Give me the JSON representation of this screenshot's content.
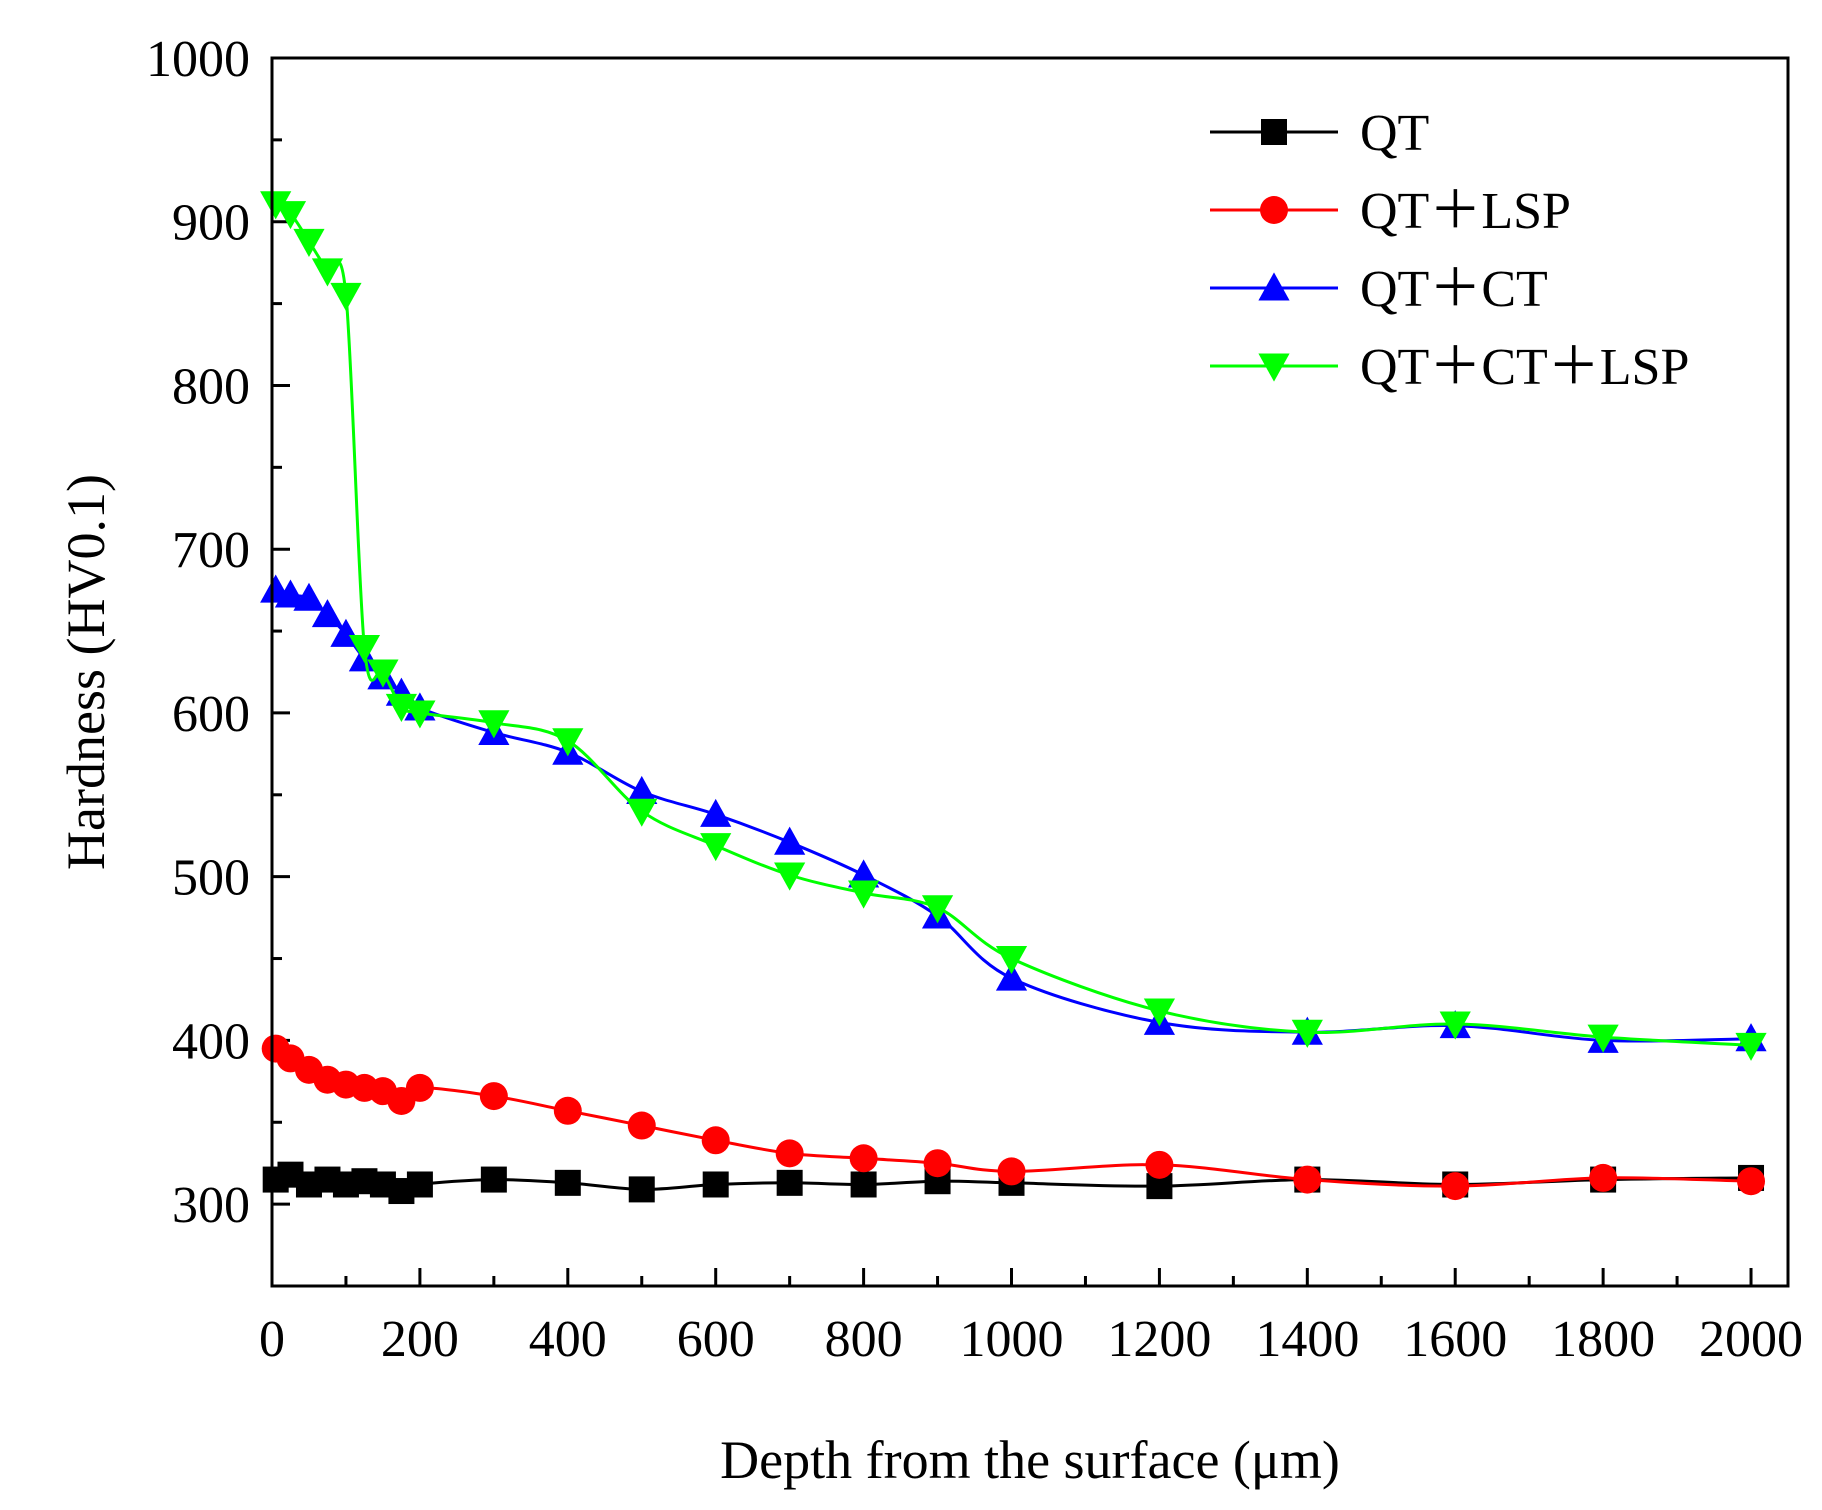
{
  "chart_data": {
    "type": "line",
    "title": "",
    "xlabel": "Depth from the surface (μm)",
    "ylabel": "Hardness (HV0.1)",
    "xlim": [
      0,
      2050
    ],
    "ylim": [
      250,
      1000
    ],
    "xticks": [
      0,
      200,
      400,
      600,
      800,
      1000,
      1200,
      1400,
      1600,
      1800,
      2000
    ],
    "yticks": [
      300,
      400,
      500,
      600,
      700,
      800,
      900,
      1000
    ],
    "xtick_labels": [
      "0",
      "200",
      "400",
      "600",
      "800",
      "1000",
      "1200",
      "1400",
      "1600",
      "1800",
      "2000"
    ],
    "ytick_labels": [
      "300",
      "400",
      "500",
      "600",
      "700",
      "800",
      "900",
      "1000"
    ],
    "grid": false,
    "legend_position": "top-right",
    "series": [
      {
        "name": "QT",
        "color": "#000000",
        "marker": "square",
        "x": [
          5,
          25,
          50,
          75,
          100,
          125,
          150,
          175,
          200,
          300,
          400,
          500,
          600,
          700,
          800,
          900,
          1000,
          1200,
          1400,
          1600,
          1800,
          2000
        ],
        "y": [
          315,
          318,
          312,
          315,
          312,
          314,
          312,
          308,
          312,
          315,
          313,
          309,
          312,
          313,
          312,
          314,
          313,
          311,
          315,
          312,
          315,
          316
        ]
      },
      {
        "name": "QT＋LSP",
        "color": "#ff0000",
        "marker": "circle",
        "x": [
          5,
          25,
          50,
          75,
          100,
          125,
          150,
          175,
          200,
          300,
          400,
          500,
          600,
          700,
          800,
          900,
          1000,
          1200,
          1400,
          1600,
          1800,
          2000
        ],
        "y": [
          395,
          389,
          382,
          376,
          373,
          371,
          369,
          363,
          371,
          366,
          357,
          348,
          339,
          331,
          328,
          325,
          320,
          324,
          315,
          311,
          316,
          314
        ]
      },
      {
        "name": "QT＋CT",
        "color": "#0000ff",
        "marker": "triangle-up",
        "x": [
          5,
          25,
          50,
          75,
          100,
          125,
          150,
          175,
          200,
          300,
          400,
          500,
          600,
          700,
          800,
          900,
          1000,
          1200,
          1400,
          1600,
          1800,
          2000
        ],
        "y": [
          675,
          672,
          670,
          660,
          648,
          633,
          622,
          612,
          603,
          588,
          576,
          552,
          538,
          521,
          501,
          476,
          438,
          411,
          405,
          409,
          400,
          401
        ]
      },
      {
        "name": "QT＋CT＋LSP",
        "color": "#00ff00",
        "marker": "triangle-down",
        "x": [
          5,
          25,
          50,
          75,
          100,
          125,
          150,
          175,
          200,
          300,
          400,
          500,
          600,
          700,
          800,
          900,
          1000,
          1200,
          1400,
          1600,
          1800,
          2000
        ],
        "y": [
          911,
          905,
          888,
          870,
          855,
          640,
          625,
          604,
          600,
          594,
          583,
          540,
          519,
          501,
          490,
          481,
          450,
          418,
          405,
          410,
          402,
          397
        ]
      }
    ]
  }
}
